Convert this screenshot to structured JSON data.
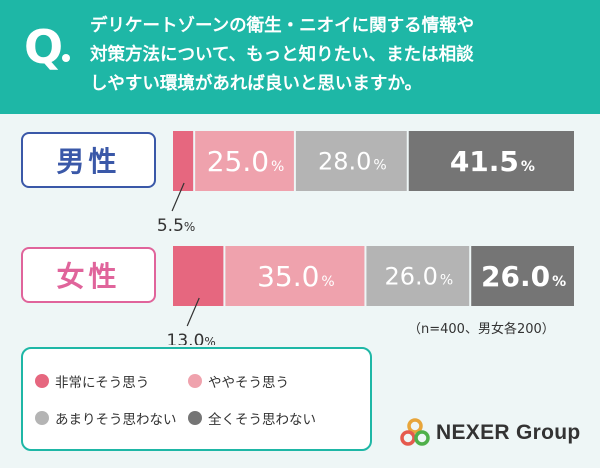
{
  "question": {
    "mark": "Q",
    "lines": [
      "デリケートゾーンの衛生・ニオイに関する情報や",
      "対策方法について、もっと知りたい、または相談",
      "しやすい環境があれば良いと思いますか。"
    ]
  },
  "chart_data": {
    "type": "bar",
    "orientation": "horizontal-stacked-100",
    "categories": [
      "男性",
      "女性"
    ],
    "series": [
      {
        "name": "非常にそう思う",
        "color": "#e6677f",
        "values": [
          5.5,
          13.0
        ]
      },
      {
        "name": "ややそう思う",
        "color": "#efa2ad",
        "values": [
          25.0,
          35.0
        ]
      },
      {
        "name": "あまりそう思わない",
        "color": "#b4b4b4",
        "values": [
          28.0,
          26.0
        ]
      },
      {
        "name": "全くそう思わない",
        "color": "#757575",
        "values": [
          41.5,
          26.0
        ]
      }
    ],
    "unit": "%",
    "value_labels": {
      "male": [
        "5.5",
        "25.0",
        "28.0",
        "41.5"
      ],
      "female": [
        "13.0",
        "35.0",
        "26.0",
        "26.0"
      ]
    },
    "note": "（n=400、男女各200）",
    "legend_position": "bottom-left"
  },
  "brand": {
    "name": "NEXER Group"
  }
}
